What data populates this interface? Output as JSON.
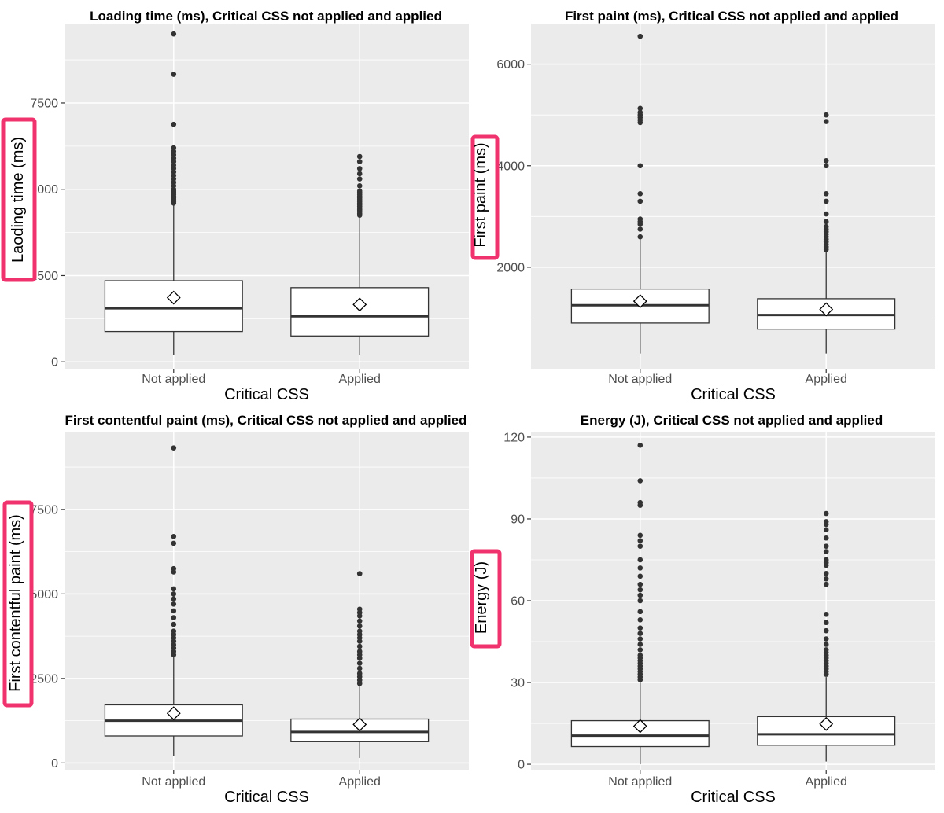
{
  "chart_data": [
    {
      "type": "box",
      "title": "Loading time (ms), Critical CSS not applied and applied",
      "xlabel": "Critical CSS",
      "ylabel": "Laoding time (ms)",
      "ylabel_highlighted": true,
      "ylim": [
        -200,
        9800
      ],
      "yticks": [
        0,
        2500,
        5000,
        7500
      ],
      "ytick_labels": [
        "0",
        "2500",
        "5000",
        "7500"
      ],
      "categories": [
        "Not applied",
        "Applied"
      ],
      "boxes": [
        {
          "category": "Not applied",
          "whisker_low": 200,
          "q1": 880,
          "median": 1550,
          "q3": 2350,
          "whisker_high": 4550,
          "mean": 1860,
          "outliers": [
            4600,
            4650,
            4700,
            4750,
            4800,
            4850,
            4900,
            4950,
            5000,
            5100,
            5200,
            5300,
            5400,
            5500,
            5600,
            5700,
            5800,
            5900,
            6000,
            6100,
            6200,
            6880,
            8330,
            9500
          ]
        },
        {
          "category": "Applied",
          "whisker_low": 200,
          "q1": 750,
          "median": 1320,
          "q3": 2150,
          "whisker_high": 4200,
          "mean": 1660,
          "outliers": [
            4250,
            4300,
            4350,
            4400,
            4450,
            4500,
            4550,
            4600,
            4650,
            4700,
            4750,
            4800,
            4850,
            4900,
            4950,
            5100,
            5300,
            5450,
            5600,
            5800,
            5950
          ]
        }
      ]
    },
    {
      "type": "box",
      "title": "First paint (ms), Critical CSS not applied and applied",
      "xlabel": "Critical CSS",
      "ylabel": "First paint (ms)",
      "ylabel_highlighted": true,
      "ylim": [
        0,
        6800
      ],
      "yticks": [
        2000,
        4000,
        6000
      ],
      "ytick_labels": [
        "2000",
        "4000",
        "6000"
      ],
      "categories": [
        "Not applied",
        "Applied"
      ],
      "boxes": [
        {
          "category": "Not applied",
          "whisker_low": 300,
          "q1": 900,
          "median": 1250,
          "q3": 1570,
          "whisker_high": 2550,
          "mean": 1330,
          "outliers": [
            2600,
            2750,
            2850,
            2900,
            2950,
            3300,
            3450,
            4000,
            4850,
            4900,
            4950,
            5000,
            5050,
            5130,
            6550
          ]
        },
        {
          "category": "Applied",
          "whisker_low": 300,
          "q1": 780,
          "median": 1060,
          "q3": 1380,
          "whisker_high": 2300,
          "mean": 1170,
          "outliers": [
            2350,
            2400,
            2450,
            2500,
            2550,
            2600,
            2650,
            2700,
            2750,
            2800,
            2900,
            3050,
            3300,
            3450,
            4000,
            4100,
            4870,
            5000
          ]
        }
      ]
    },
    {
      "type": "box",
      "title": "First contentful paint (ms), Critical CSS not applied and applied",
      "xlabel": "Critical CSS",
      "ylabel": "First contentful paint (ms)",
      "ylabel_highlighted": true,
      "ylim": [
        -200,
        9800
      ],
      "yticks": [
        0,
        2500,
        5000,
        7500
      ],
      "ytick_labels": [
        "0",
        "2500",
        "5000",
        "7500"
      ],
      "categories": [
        "Not applied",
        "Applied"
      ],
      "boxes": [
        {
          "category": "Not applied",
          "whisker_low": 200,
          "q1": 800,
          "median": 1250,
          "q3": 1720,
          "whisker_high": 3150,
          "mean": 1470,
          "outliers": [
            3200,
            3300,
            3400,
            3500,
            3600,
            3700,
            3800,
            3900,
            4100,
            4300,
            4500,
            4700,
            4850,
            5000,
            5150,
            5650,
            5750,
            6500,
            6700,
            9320
          ]
        },
        {
          "category": "Applied",
          "whisker_low": 150,
          "q1": 630,
          "median": 920,
          "q3": 1300,
          "whisker_high": 2300,
          "mean": 1140,
          "outliers": [
            2350,
            2450,
            2550,
            2650,
            2800,
            2950,
            3100,
            3200,
            3300,
            3450,
            3600,
            3700,
            3800,
            3900,
            4050,
            4200,
            4350,
            4450,
            4550,
            5600
          ]
        }
      ]
    },
    {
      "type": "box",
      "title": "Energy (J), Critical CSS not applied and applied",
      "xlabel": "Critical CSS",
      "ylabel": "Energy (J)",
      "ylabel_highlighted": true,
      "ylim": [
        -2,
        122
      ],
      "yticks": [
        0,
        30,
        60,
        90,
        120
      ],
      "ytick_labels": [
        "0",
        "30",
        "60",
        "90",
        "120"
      ],
      "categories": [
        "Not applied",
        "Applied"
      ],
      "boxes": [
        {
          "category": "Not applied",
          "whisker_low": 0,
          "q1": 6.5,
          "median": 10.5,
          "q3": 16,
          "whisker_high": 30,
          "mean": 14,
          "outliers": [
            31,
            32,
            33,
            34,
            35,
            36,
            37,
            38,
            39,
            40,
            42,
            44,
            46,
            48,
            50,
            53,
            56,
            60,
            62,
            64,
            66,
            69,
            72,
            75,
            80,
            82,
            84,
            95,
            96,
            104,
            117
          ]
        },
        {
          "category": "Applied",
          "whisker_low": 1,
          "q1": 7,
          "median": 11,
          "q3": 17.5,
          "whisker_high": 32,
          "mean": 14.8,
          "outliers": [
            33,
            34,
            35,
            36,
            37,
            38,
            39,
            40,
            41,
            42,
            44,
            46,
            49,
            52,
            55,
            66,
            68,
            70,
            73,
            74,
            75,
            78,
            80,
            83,
            86,
            88,
            89,
            92
          ]
        }
      ]
    }
  ]
}
